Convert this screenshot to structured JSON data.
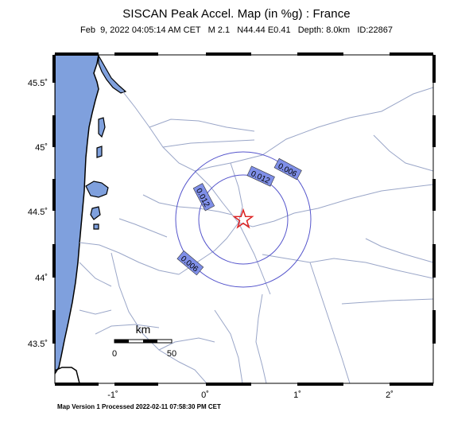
{
  "header": {
    "title": "SISCAN Peak Accel. Map (in %g) : France",
    "subtitle": "Feb  9, 2022 04:05:14 AM CET   M 2.1   N44.44 E0.41   Depth: 8.0km   ID:22867"
  },
  "axes": {
    "lat_labels": [
      "45.5˚",
      "45˚",
      "44.5˚",
      "44˚",
      "43.5˚"
    ],
    "lon_labels": [
      "-1˚",
      "0˚",
      "1˚",
      "2˚"
    ]
  },
  "contours": {
    "inner_label": "0.012",
    "inner_label_2": "0.012",
    "outer_label": "0.006",
    "outer_label_2": "0.006"
  },
  "scale_bar": {
    "unit": "km",
    "start": "0",
    "end": "50"
  },
  "footer": {
    "text": "Map Version 1 Processed 2022-02-11 07:58:30 PM CET"
  },
  "colors": {
    "sea": "#7fa0dd",
    "rivers": "#9aa6c8",
    "contours": "#5555cc",
    "epicenter": "#dd2222"
  }
}
